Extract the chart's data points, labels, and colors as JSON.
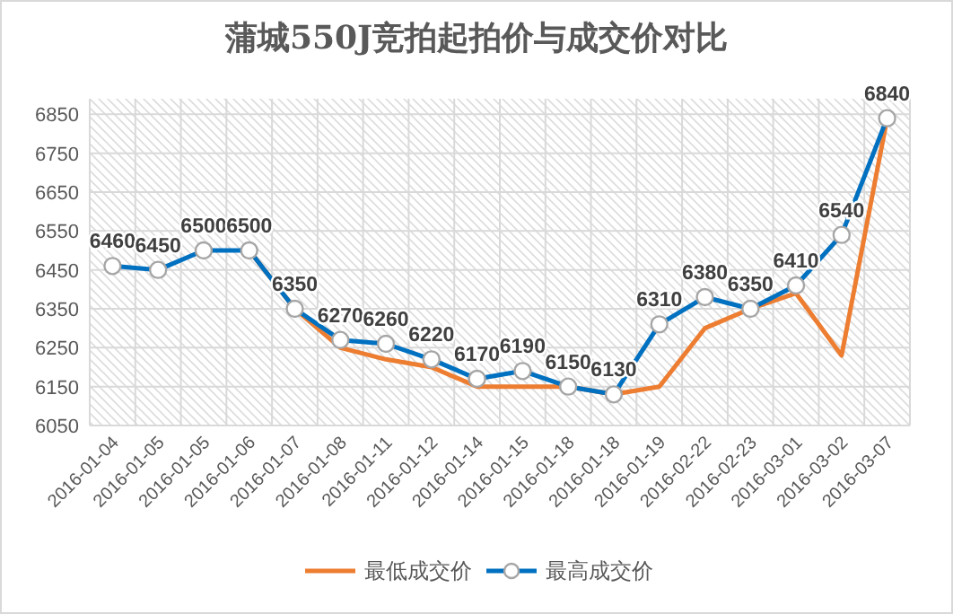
{
  "chart_data": {
    "type": "line",
    "title": "蒲城550J竞拍起拍价与成交价对比",
    "categories": [
      "2016-01-04",
      "2016-01-05",
      "2016-01-05",
      "2016-01-06",
      "2016-01-07",
      "2016-01-08",
      "2016-01-11",
      "2016-01-12",
      "2016-01-14",
      "2016-01-15",
      "2016-01-18",
      "2016-01-18",
      "2016-01-19",
      "2016-02-22",
      "2016-02-23",
      "2016-03-01",
      "2016-03-02",
      "2016-03-07"
    ],
    "series": [
      {
        "name": "最低成交价",
        "color": "#ed7d31",
        "values": [
          null,
          null,
          null,
          6500,
          6350,
          6250,
          6220,
          6200,
          6150,
          6150,
          6150,
          6130,
          6150,
          6300,
          6350,
          6390,
          6230,
          6840
        ]
      },
      {
        "name": "最高成交价",
        "color": "#0070c0",
        "marker": "circle",
        "value_labels": [
          "6460",
          "6450",
          "6500",
          "6500",
          "6350",
          "6270",
          "6260",
          "6220",
          "6170",
          "6190",
          "6150",
          "6130",
          "6310",
          "6380",
          "6350",
          "6410",
          "6540",
          "6840"
        ],
        "values": [
          6460,
          6450,
          6500,
          6500,
          6350,
          6270,
          6260,
          6220,
          6170,
          6190,
          6150,
          6130,
          6310,
          6380,
          6350,
          6410,
          6540,
          6840
        ]
      }
    ],
    "ylim": [
      6050,
      6890
    ],
    "yticks": [
      6050,
      6150,
      6250,
      6350,
      6450,
      6550,
      6650,
      6750,
      6850
    ],
    "grid": true,
    "legend": "bottom"
  }
}
